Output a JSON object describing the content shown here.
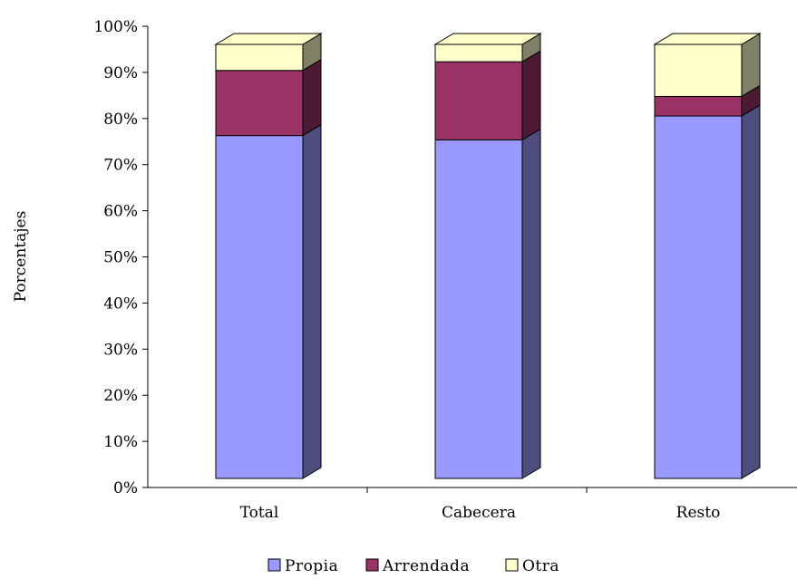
{
  "chart_data": {
    "type": "bar",
    "stacked": true,
    "percent_stacked": true,
    "three_d": true,
    "categories": [
      "Total",
      "Cabecera",
      "Resto"
    ],
    "series": [
      {
        "name": "Propia",
        "values": [
          79,
          78,
          83.5
        ],
        "color": "#9999FF",
        "side_color": "#4D4D80",
        "top_color": "#CCCCFF"
      },
      {
        "name": "Arrendada",
        "values": [
          15,
          18,
          4.5
        ],
        "color": "#993366",
        "side_color": "#4D1A33",
        "top_color": "#993366"
      },
      {
        "name": "Otra",
        "values": [
          6,
          4,
          12
        ],
        "color": "#FFFFCC",
        "side_color": "#808066",
        "top_color": "#FFFFCC"
      }
    ],
    "ylabel": "Porcentajes",
    "xlabel": "",
    "ylim": [
      0,
      100
    ],
    "yticks": [
      "0%",
      "10%",
      "20%",
      "30%",
      "40%",
      "50%",
      "60%",
      "70%",
      "80%",
      "90%",
      "100%"
    ],
    "grid": false,
    "legend_position": "bottom"
  }
}
